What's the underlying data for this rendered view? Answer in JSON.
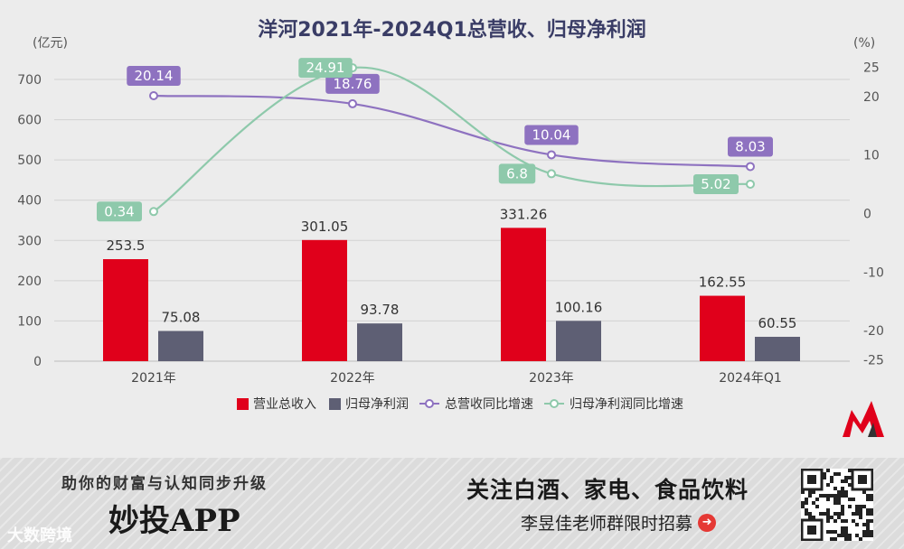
{
  "chart_data": {
    "type": "bar",
    "title": "洋河2021年-2024Q1总营收、归母净利润",
    "left_unit": "(亿元)",
    "right_unit": "(%)",
    "categories": [
      "2021年",
      "2022年",
      "2023年",
      "2024年Q1"
    ],
    "ylim": [
      0,
      700
    ],
    "yticks": [
      "0",
      "100",
      "200",
      "300",
      "400",
      "500",
      "600",
      "700"
    ],
    "y2lim": [
      -25,
      25
    ],
    "y2ticks": [
      "-25",
      "-20",
      "-10",
      "0",
      "10",
      "20",
      "25"
    ],
    "grid": true,
    "legend_position": "bottom",
    "series": [
      {
        "name": "营业总收入",
        "kind": "bar",
        "axis": "left",
        "color": "#e0001b",
        "values": [
          253.5,
          301.05,
          331.26,
          162.55
        ],
        "labels": [
          "253.5",
          "301.05",
          "331.26",
          "162.55"
        ]
      },
      {
        "name": "归母净利润",
        "kind": "bar",
        "axis": "left",
        "color": "#5e5f74",
        "values": [
          75.08,
          93.78,
          100.16,
          60.55
        ],
        "labels": [
          "75.08",
          "93.78",
          "100.16",
          "60.55"
        ]
      },
      {
        "name": "总营收同比增速",
        "kind": "line",
        "axis": "right",
        "color": "#8e72c0",
        "values": [
          20.14,
          18.76,
          10.04,
          8.03
        ],
        "labels": [
          "20.14",
          "18.76",
          "10.04",
          "8.03"
        ]
      },
      {
        "name": "归母净利润同比增速",
        "kind": "line",
        "axis": "right",
        "color": "#8ec9ab",
        "values": [
          0.34,
          24.91,
          6.8,
          5.02
        ],
        "labels": [
          "0.34",
          "24.91",
          "6.8",
          "5.02"
        ]
      }
    ]
  },
  "banner": {
    "slogan": "助你的财富与认知同步升级",
    "app_name": "妙投APP",
    "follow": "关注白酒、家电、食品饮料",
    "group": "李昱佳老师群限时招募",
    "arrow_icon": "arrow-right-circle-icon",
    "watermark": "大数跨境"
  }
}
